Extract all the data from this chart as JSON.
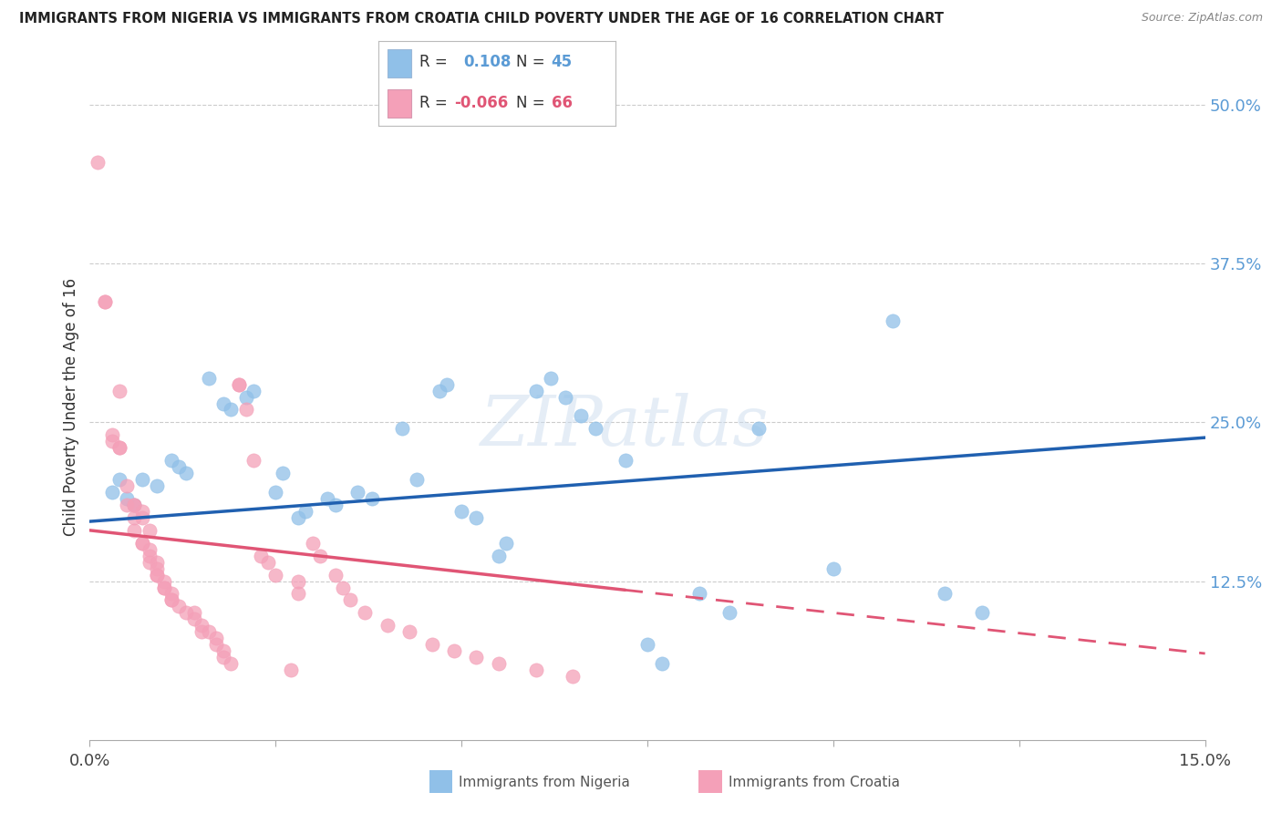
{
  "title": "IMMIGRANTS FROM NIGERIA VS IMMIGRANTS FROM CROATIA CHILD POVERTY UNDER THE AGE OF 16 CORRELATION CHART",
  "source": "Source: ZipAtlas.com",
  "ylabel": "Child Poverty Under the Age of 16",
  "nigeria_color": "#90c0e8",
  "croatia_color": "#f4a0b8",
  "trend_nigeria_color": "#2060b0",
  "trend_croatia_color": "#e05575",
  "nigeria_scatter": [
    [
      0.003,
      0.195
    ],
    [
      0.004,
      0.205
    ],
    [
      0.005,
      0.19
    ],
    [
      0.006,
      0.185
    ],
    [
      0.007,
      0.205
    ],
    [
      0.009,
      0.2
    ],
    [
      0.011,
      0.22
    ],
    [
      0.012,
      0.215
    ],
    [
      0.013,
      0.21
    ],
    [
      0.016,
      0.285
    ],
    [
      0.018,
      0.265
    ],
    [
      0.019,
      0.26
    ],
    [
      0.021,
      0.27
    ],
    [
      0.022,
      0.275
    ],
    [
      0.025,
      0.195
    ],
    [
      0.026,
      0.21
    ],
    [
      0.028,
      0.175
    ],
    [
      0.029,
      0.18
    ],
    [
      0.032,
      0.19
    ],
    [
      0.033,
      0.185
    ],
    [
      0.036,
      0.195
    ],
    [
      0.038,
      0.19
    ],
    [
      0.042,
      0.245
    ],
    [
      0.044,
      0.205
    ],
    [
      0.047,
      0.275
    ],
    [
      0.048,
      0.28
    ],
    [
      0.05,
      0.18
    ],
    [
      0.052,
      0.175
    ],
    [
      0.055,
      0.145
    ],
    [
      0.056,
      0.155
    ],
    [
      0.06,
      0.275
    ],
    [
      0.062,
      0.285
    ],
    [
      0.064,
      0.27
    ],
    [
      0.066,
      0.255
    ],
    [
      0.068,
      0.245
    ],
    [
      0.072,
      0.22
    ],
    [
      0.075,
      0.075
    ],
    [
      0.077,
      0.06
    ],
    [
      0.082,
      0.115
    ],
    [
      0.086,
      0.1
    ],
    [
      0.09,
      0.245
    ],
    [
      0.1,
      0.135
    ],
    [
      0.108,
      0.33
    ],
    [
      0.115,
      0.115
    ],
    [
      0.12,
      0.1
    ]
  ],
  "croatia_scatter": [
    [
      0.001,
      0.455
    ],
    [
      0.002,
      0.345
    ],
    [
      0.002,
      0.345
    ],
    [
      0.003,
      0.24
    ],
    [
      0.003,
      0.235
    ],
    [
      0.004,
      0.23
    ],
    [
      0.004,
      0.23
    ],
    [
      0.004,
      0.275
    ],
    [
      0.005,
      0.185
    ],
    [
      0.005,
      0.2
    ],
    [
      0.006,
      0.185
    ],
    [
      0.006,
      0.185
    ],
    [
      0.006,
      0.175
    ],
    [
      0.006,
      0.165
    ],
    [
      0.007,
      0.18
    ],
    [
      0.007,
      0.155
    ],
    [
      0.007,
      0.155
    ],
    [
      0.007,
      0.175
    ],
    [
      0.008,
      0.165
    ],
    [
      0.008,
      0.15
    ],
    [
      0.008,
      0.145
    ],
    [
      0.008,
      0.14
    ],
    [
      0.009,
      0.14
    ],
    [
      0.009,
      0.135
    ],
    [
      0.009,
      0.13
    ],
    [
      0.009,
      0.13
    ],
    [
      0.01,
      0.125
    ],
    [
      0.01,
      0.12
    ],
    [
      0.01,
      0.12
    ],
    [
      0.011,
      0.115
    ],
    [
      0.011,
      0.11
    ],
    [
      0.011,
      0.11
    ],
    [
      0.012,
      0.105
    ],
    [
      0.013,
      0.1
    ],
    [
      0.014,
      0.1
    ],
    [
      0.014,
      0.095
    ],
    [
      0.015,
      0.09
    ],
    [
      0.015,
      0.085
    ],
    [
      0.016,
      0.085
    ],
    [
      0.017,
      0.08
    ],
    [
      0.017,
      0.075
    ],
    [
      0.018,
      0.07
    ],
    [
      0.018,
      0.065
    ],
    [
      0.019,
      0.06
    ],
    [
      0.02,
      0.28
    ],
    [
      0.02,
      0.28
    ],
    [
      0.021,
      0.26
    ],
    [
      0.022,
      0.22
    ],
    [
      0.023,
      0.145
    ],
    [
      0.024,
      0.14
    ],
    [
      0.025,
      0.13
    ],
    [
      0.027,
      0.055
    ],
    [
      0.028,
      0.115
    ],
    [
      0.028,
      0.125
    ],
    [
      0.03,
      0.155
    ],
    [
      0.031,
      0.145
    ],
    [
      0.033,
      0.13
    ],
    [
      0.034,
      0.12
    ],
    [
      0.035,
      0.11
    ],
    [
      0.037,
      0.1
    ],
    [
      0.04,
      0.09
    ],
    [
      0.043,
      0.085
    ],
    [
      0.046,
      0.075
    ],
    [
      0.049,
      0.07
    ],
    [
      0.052,
      0.065
    ],
    [
      0.055,
      0.06
    ],
    [
      0.06,
      0.055
    ],
    [
      0.065,
      0.05
    ]
  ],
  "xlim": [
    0,
    0.15
  ],
  "ylim": [
    0,
    0.525
  ],
  "nigeria_trend": [
    0.0,
    0.15,
    0.172,
    0.238
  ],
  "croatia_trend_solid": [
    0.0,
    0.072,
    0.165,
    0.118
  ],
  "croatia_trend_dashed": [
    0.072,
    0.15,
    0.118,
    0.068
  ],
  "background_color": "#ffffff"
}
